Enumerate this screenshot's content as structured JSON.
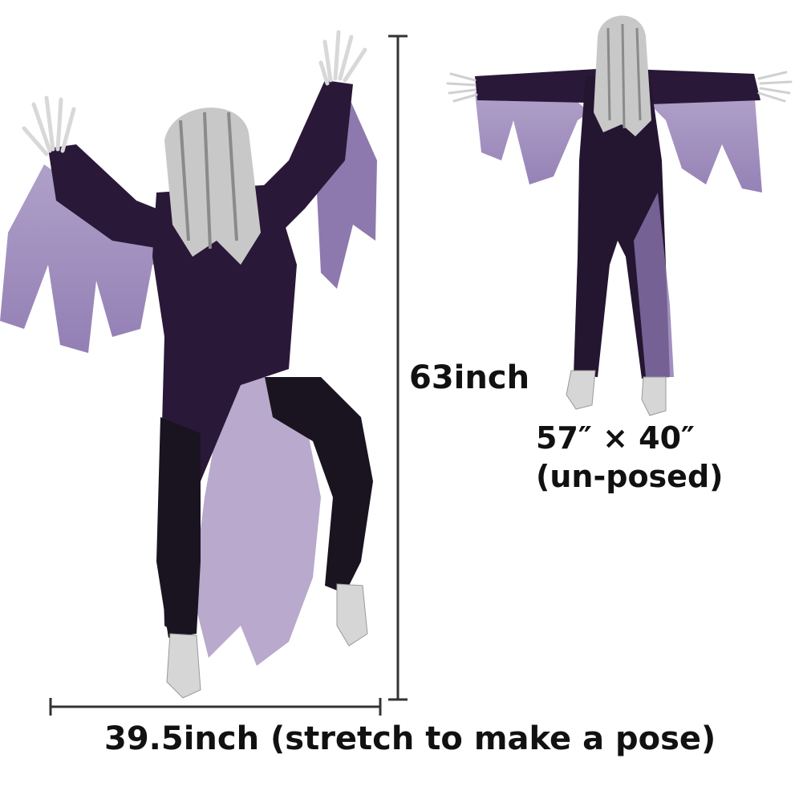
{
  "labels": {
    "height": "63inch",
    "dims_line1": "57″  × 40″",
    "dims_line2": "(un-posed)",
    "width": "39.5inch (stretch to make a pose)"
  },
  "colors": {
    "cloak": "#2a1838",
    "gauze": "#9a88b8",
    "gauze_dark": "#7a62a0",
    "pants": "#1a1420",
    "hair": "#c8c8c8",
    "bone": "#dcdcdc",
    "ink": "#111111"
  }
}
